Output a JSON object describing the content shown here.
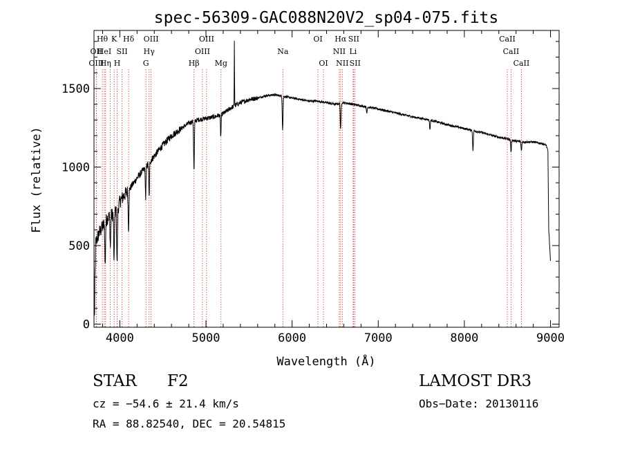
{
  "chart_data": {
    "type": "line",
    "title": "spec-56309-GAC088N20V2_sp04-075.fits",
    "xlabel": "Wavelength (Å)",
    "ylabel": "Flux (relative)",
    "xlim": [
      3700,
      9100
    ],
    "ylim": [
      -20,
      1870
    ],
    "xticks": [
      4000,
      5000,
      6000,
      7000,
      8000,
      9000
    ],
    "yticks": [
      0,
      500,
      1000,
      1500
    ],
    "xticklabels": [
      "4000",
      "5000",
      "6000",
      "7000",
      "8000",
      "9000"
    ],
    "yticklabels": [
      "0",
      "500",
      "1000",
      "1500"
    ],
    "continuum": {
      "x": [
        3700,
        3720,
        3760,
        3800,
        3860,
        3920,
        3980,
        4000,
        4050,
        4100,
        4200,
        4300,
        4400,
        4500,
        4600,
        4700,
        4800,
        4900,
        5000,
        5100,
        5200,
        5300,
        5400,
        5500,
        5600,
        5700,
        5800,
        5900,
        6000,
        6100,
        6200,
        6300,
        6400,
        6500,
        6600,
        6700,
        6800,
        6900,
        7000,
        7200,
        7400,
        7600,
        7800,
        8000,
        8200,
        8400,
        8500,
        8600,
        8700,
        8800,
        8900,
        8950,
        8970,
        8980,
        9000
      ],
      "y": [
        30,
        520,
        580,
        620,
        680,
        700,
        740,
        780,
        820,
        850,
        930,
        1000,
        1070,
        1140,
        1200,
        1240,
        1280,
        1300,
        1310,
        1320,
        1340,
        1380,
        1410,
        1430,
        1440,
        1455,
        1460,
        1450,
        1440,
        1430,
        1420,
        1420,
        1410,
        1400,
        1410,
        1400,
        1390,
        1380,
        1370,
        1345,
        1320,
        1300,
        1270,
        1245,
        1220,
        1190,
        1180,
        1165,
        1160,
        1160,
        1150,
        1140,
        1100,
        600,
        400
      ]
    },
    "absorption": [
      {
        "x": 3830,
        "depth": 280
      },
      {
        "x": 3890,
        "depth": 200
      },
      {
        "x": 3933,
        "depth": 330
      },
      {
        "x": 3968,
        "depth": 350
      },
      {
        "x": 4101,
        "depth": 250
      },
      {
        "x": 4300,
        "depth": 200
      },
      {
        "x": 4340,
        "depth": 220
      },
      {
        "x": 4861,
        "depth": 320
      },
      {
        "x": 5172,
        "depth": 140
      },
      {
        "x": 5890,
        "depth": 210
      },
      {
        "x": 6563,
        "depth": 170
      },
      {
        "x": 6867,
        "depth": 40
      },
      {
        "x": 7600,
        "depth": 60
      },
      {
        "x": 8100,
        "depth": 130
      },
      {
        "x": 8542,
        "depth": 80
      },
      {
        "x": 8662,
        "depth": 60
      }
    ],
    "emission": [
      {
        "x": 5330,
        "height": 420
      }
    ],
    "lines": [
      {
        "x": 3727,
        "label": "OII",
        "row": 1
      },
      {
        "x": 3727,
        "label": "OIII",
        "row": 2
      },
      {
        "x": 3797,
        "label": "Hθ",
        "row": 0
      },
      {
        "x": 3820,
        "label": "HeI",
        "row": 1
      },
      {
        "x": 3835,
        "label": "Hη",
        "row": 2
      },
      {
        "x": 3889,
        "label": "",
        "row": 0
      },
      {
        "x": 3934,
        "label": "K",
        "row": 0
      },
      {
        "x": 3969,
        "label": "H",
        "row": 2
      },
      {
        "x": 4026,
        "label": "SII",
        "row": 1
      },
      {
        "x": 4102,
        "label": "Hδ",
        "row": 0
      },
      {
        "x": 4303,
        "label": "G",
        "row": 2
      },
      {
        "x": 4340,
        "label": "Hγ",
        "row": 1
      },
      {
        "x": 4363,
        "label": "OIII",
        "row": 0
      },
      {
        "x": 4861,
        "label": "Hβ",
        "row": 2
      },
      {
        "x": 4959,
        "label": "OIII",
        "row": 1
      },
      {
        "x": 5007,
        "label": "OIII",
        "row": 0
      },
      {
        "x": 5175,
        "label": "Mg",
        "row": 2
      },
      {
        "x": 5893,
        "label": "Na",
        "row": 1
      },
      {
        "x": 6300,
        "label": "OI",
        "row": 0
      },
      {
        "x": 6364,
        "label": "OI",
        "row": 2
      },
      {
        "x": 6548,
        "label": "NII",
        "row": 1
      },
      {
        "x": 6563,
        "label": "Hα",
        "row": 0
      },
      {
        "x": 6583,
        "label": "NII",
        "row": 2
      },
      {
        "x": 6708,
        "label": "Li",
        "row": 1
      },
      {
        "x": 6716,
        "label": "SII",
        "row": 0
      },
      {
        "x": 6731,
        "label": "SII",
        "row": 2
      },
      {
        "x": 8498,
        "label": "CaII",
        "row": 0
      },
      {
        "x": 8542,
        "label": "CaII",
        "row": 1
      },
      {
        "x": 8662,
        "label": "CaII",
        "row": 2
      }
    ]
  },
  "info": {
    "class_label": "STAR",
    "subclass": "F2",
    "survey": "LAMOST DR3",
    "cz": "cz = −54.6 ± 21.4 km/s",
    "obs_date": "Obs−Date: 20130116",
    "coords": "RA =  88.82540, DEC =  20.54815"
  }
}
